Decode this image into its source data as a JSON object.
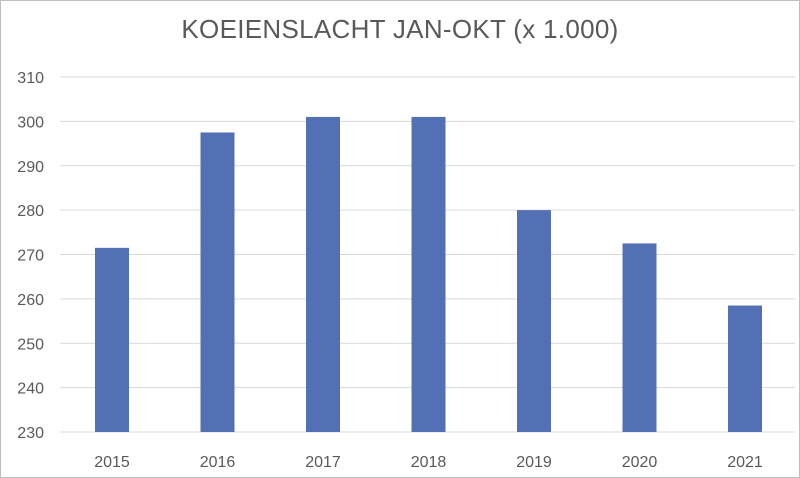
{
  "chart_data": {
    "type": "bar",
    "title": "KOEIENSLACHT JAN-OKT (x 1.000)",
    "categories": [
      "2015",
      "2016",
      "2017",
      "2018",
      "2019",
      "2020",
      "2021"
    ],
    "values": [
      271.5,
      297.5,
      301,
      301,
      280,
      272.5,
      258.5
    ],
    "ylim": [
      230,
      310
    ],
    "yticks": [
      230,
      240,
      250,
      260,
      270,
      280,
      290,
      300,
      310
    ],
    "grid": true,
    "colors": {
      "bar": "#5470b4",
      "grid": "#d9d9d9",
      "text": "#595959"
    }
  }
}
